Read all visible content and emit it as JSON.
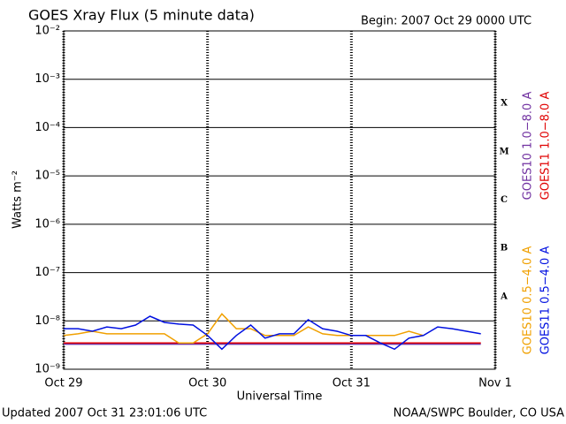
{
  "chart_data": {
    "type": "line",
    "title": "GOES Xray Flux (5 minute data)",
    "subtitle": "Begin:  2007 Oct 29 0000 UTC",
    "ylabel": "Watts m⁻²",
    "xlabel": "Universal Time",
    "footer_left": "Updated 2007 Oct 31 23:01:06 UTC",
    "footer_right": "NOAA/SWPC Boulder, CO USA",
    "flare_classes": [
      "X",
      "M",
      "C",
      "B",
      "A"
    ],
    "ylog": true,
    "grid": true,
    "ylim": [
      1e-09,
      0.01
    ],
    "yticks": [
      {
        "value": 1e-09,
        "label": "10⁻⁹"
      },
      {
        "value": 1e-08,
        "label": "10⁻⁸"
      },
      {
        "value": 1e-07,
        "label": "10⁻⁷"
      },
      {
        "value": 1e-06,
        "label": "10⁻⁶"
      },
      {
        "value": 1e-05,
        "label": "10⁻⁵"
      },
      {
        "value": 0.0001,
        "label": "10⁻⁴"
      },
      {
        "value": 0.001,
        "label": "10⁻³"
      },
      {
        "value": 0.01,
        "label": "10⁻²"
      }
    ],
    "xlim": [
      0,
      3
    ],
    "xticks": [
      {
        "value": 0,
        "label": "Oct 29"
      },
      {
        "value": 1,
        "label": "Oct 30"
      },
      {
        "value": 2,
        "label": "Oct 31"
      },
      {
        "value": 3,
        "label": "Nov 1"
      }
    ],
    "x": [
      0,
      0.1,
      0.2,
      0.3,
      0.4,
      0.5,
      0.6,
      0.7,
      0.8,
      0.9,
      1.0,
      1.1,
      1.2,
      1.3,
      1.4,
      1.5,
      1.6,
      1.7,
      1.8,
      1.9,
      2.0,
      2.1,
      2.2,
      2.3,
      2.4,
      2.5,
      2.6,
      2.7,
      2.8,
      2.9,
      3.0
    ],
    "series": [
      {
        "name": "GOES10 1.0−8.0 A",
        "color": "#7030a0",
        "legend_group": "top",
        "values": [
          3.3e-09,
          3.3e-09,
          3.3e-09,
          3.3e-09,
          3.3e-09,
          3.3e-09,
          3.3e-09,
          3.3e-09,
          3.3e-09,
          3.3e-09,
          3.3e-09,
          3.3e-09,
          3.3e-09,
          3.3e-09,
          3.3e-09,
          3.3e-09,
          3.3e-09,
          3.3e-09,
          3.3e-09,
          3.3e-09,
          3.3e-09,
          3.3e-09,
          3.3e-09,
          3.3e-09,
          3.3e-09,
          3.3e-09,
          3.3e-09,
          3.3e-09,
          3.3e-09,
          3.3e-09,
          null
        ]
      },
      {
        "name": "GOES11 1.0−8.0 A",
        "color": "#e00000",
        "legend_group": "top",
        "values": [
          3.5e-09,
          3.5e-09,
          3.5e-09,
          3.5e-09,
          3.5e-09,
          3.5e-09,
          3.5e-09,
          3.5e-09,
          3.5e-09,
          3.5e-09,
          3.5e-09,
          3.5e-09,
          3.5e-09,
          3.5e-09,
          3.5e-09,
          3.5e-09,
          3.5e-09,
          3.5e-09,
          3.5e-09,
          3.5e-09,
          3.5e-09,
          3.5e-09,
          3.5e-09,
          3.5e-09,
          3.5e-09,
          3.5e-09,
          3.5e-09,
          3.5e-09,
          3.5e-09,
          3.5e-09,
          null
        ]
      },
      {
        "name": "GOES10 0.5−4.0 A",
        "color": "#f0a000",
        "legend_group": "bottom",
        "values": [
          5e-09,
          5.4e-09,
          6.1e-09,
          5.4e-09,
          5.4e-09,
          5.4e-09,
          5.4e-09,
          5.4e-09,
          3.5e-09,
          3.5e-09,
          5.4e-09,
          1.4e-08,
          6.9e-09,
          6.9e-09,
          5e-09,
          5e-09,
          5e-09,
          7.5e-09,
          5.4e-09,
          5e-09,
          5e-09,
          5e-09,
          5e-09,
          5e-09,
          6.1e-09,
          5e-09,
          null,
          null,
          null,
          null,
          null
        ]
      },
      {
        "name": "GOES11 0.5−4.0 A",
        "color": "#0010e0",
        "legend_group": "bottom",
        "values": [
          6.9e-09,
          6.9e-09,
          6.1e-09,
          7.5e-09,
          6.9e-09,
          8.2e-09,
          1.25e-08,
          9.3e-09,
          8.6e-09,
          8.2e-09,
          5e-09,
          2.6e-09,
          5e-09,
          8.2e-09,
          4.4e-09,
          5.4e-09,
          5.4e-09,
          1.06e-08,
          6.9e-09,
          6.1e-09,
          5e-09,
          5e-09,
          3.5e-09,
          2.6e-09,
          4.4e-09,
          5e-09,
          7.5e-09,
          6.9e-09,
          6.1e-09,
          5.4e-09,
          null
        ]
      }
    ]
  }
}
